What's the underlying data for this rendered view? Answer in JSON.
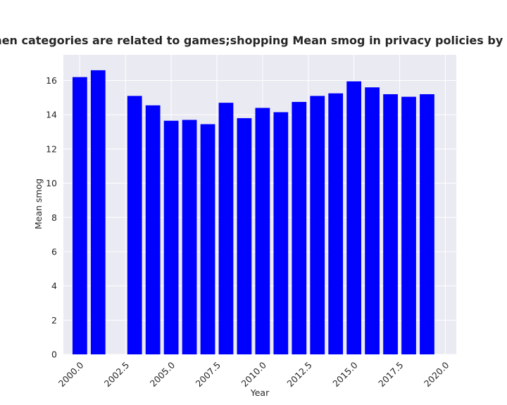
{
  "chart_data": {
    "type": "bar",
    "title": "when categories are related to games;shopping Mean smog in privacy policies by Year",
    "xlabel": "Year",
    "ylabel": "Mean smog",
    "x": [
      2000,
      2001,
      2003,
      2004,
      2005,
      2006,
      2007,
      2008,
      2009,
      2010,
      2011,
      2012,
      2013,
      2014,
      2015,
      2016,
      2017,
      2018,
      2019
    ],
    "values": [
      16.2,
      16.6,
      15.1,
      14.55,
      13.65,
      13.7,
      13.45,
      14.7,
      13.8,
      14.4,
      14.15,
      14.75,
      15.1,
      15.25,
      15.95,
      15.6,
      15.2,
      15.05,
      15.2
    ],
    "xlim": [
      1999.1,
      2020.6
    ],
    "ylim": [
      0,
      17.5
    ],
    "xticks": [
      2000,
      2002.5,
      2005,
      2007.5,
      2010,
      2012.5,
      2015,
      2017.5,
      2020
    ],
    "xtick_labels": [
      "2000.0",
      "2002.5",
      "2005.0",
      "2007.5",
      "2010.0",
      "2012.5",
      "2015.0",
      "2017.5",
      "2020.0"
    ],
    "yticks": [
      0,
      2,
      4,
      6,
      8,
      10,
      12,
      14,
      16
    ],
    "ytick_labels": [
      "0",
      "2",
      "4",
      "6",
      "8",
      "10",
      "12",
      "14",
      "16"
    ],
    "bar_color": "#0000ff",
    "plot_background": "#eaeaf2",
    "grid": true,
    "legend": "none"
  }
}
